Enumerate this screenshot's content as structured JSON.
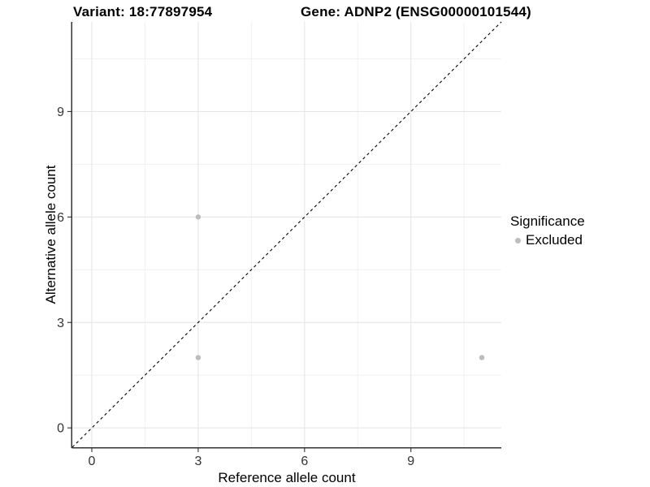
{
  "title": {
    "left": "Variant: 18:77897954",
    "right": "Gene: ADNP2 (ENSG00000101544)"
  },
  "legend": {
    "title": "Significance",
    "items": [
      {
        "label": "Excluded",
        "color": "#bdbdbd"
      }
    ]
  },
  "chart_data": {
    "type": "scatter",
    "title": "Variant: 18:77897954  /  Gene: ADNP2 (ENSG00000101544)",
    "xlabel": "Reference allele count",
    "ylabel": "Alternative allele count",
    "xlim": [
      -0.55,
      11.55
    ],
    "ylim": [
      -0.55,
      11.55
    ],
    "x_ticks": [
      0,
      3,
      6,
      9
    ],
    "y_ticks": [
      0,
      3,
      6,
      9
    ],
    "x_minor_ticks": [
      1.5,
      4.5,
      7.5,
      10.5
    ],
    "y_minor_ticks": [
      1.5,
      4.5,
      7.5,
      10.5
    ],
    "grid": "major and minor gridlines on",
    "legend_position": "right",
    "series": [
      {
        "name": "Excluded",
        "color": "#bdbdbd",
        "points": [
          [
            3,
            6
          ],
          [
            3,
            2
          ],
          [
            11,
            2
          ]
        ]
      }
    ],
    "reference_line": {
      "type": "identity y = x",
      "style": "dashed",
      "color": "#000000"
    },
    "style": {
      "grid_major_color": "#e3e3e3",
      "grid_minor_color": "#f1f1f1",
      "axis_color": "#333333",
      "tick_label_color": "#333333",
      "tick_label_size": 16,
      "point_radius": 3.2
    }
  }
}
